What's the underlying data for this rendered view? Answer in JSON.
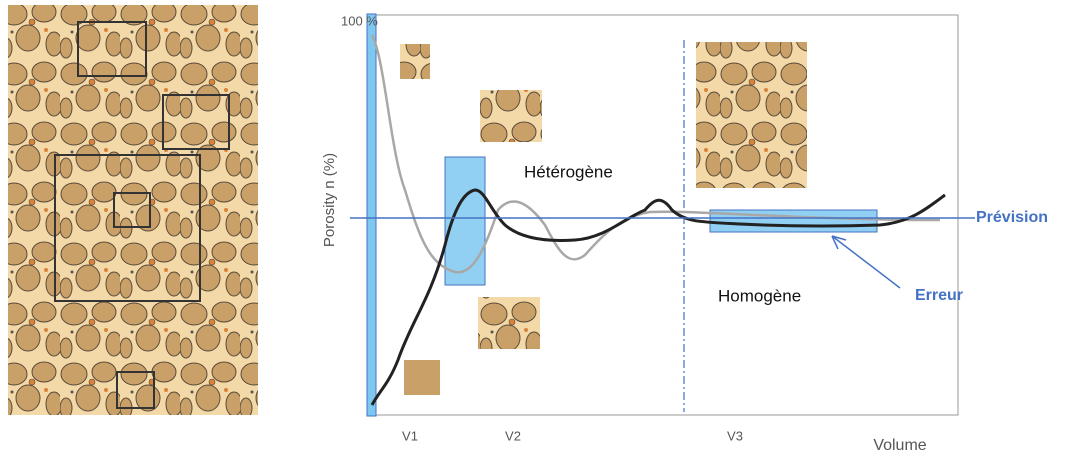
{
  "axis": {
    "top_label": "100 %",
    "y_label": "Porosity n (%)",
    "x_label": "Volume",
    "x_marks": [
      "V1",
      "V2",
      "V3"
    ]
  },
  "zones": {
    "heterogeneous": "Hétérogène",
    "homogeneous": "Homogène"
  },
  "annotations": {
    "forecast": "Prévision",
    "error": "Erreur"
  }
}
